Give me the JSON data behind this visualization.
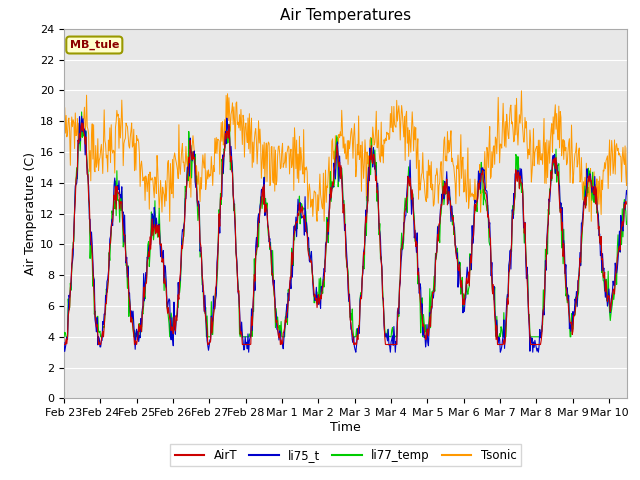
{
  "title": "Air Temperatures",
  "xlabel": "Time",
  "ylabel": "Air Temperature (C)",
  "annotation": "MB_tule",
  "ylim": [
    0,
    24
  ],
  "legend": [
    "AirT",
    "li75_t",
    "li77_temp",
    "Tsonic"
  ],
  "colors": {
    "AirT": "#cc0000",
    "li75_t": "#0000cc",
    "li77_temp": "#00cc00",
    "Tsonic": "#ff9900"
  },
  "background_color": "#e8e8e8",
  "fig_background": "#ffffff",
  "title_fontsize": 11,
  "axis_label_fontsize": 9,
  "tick_fontsize": 8,
  "num_points": 800,
  "x_tick_labels": [
    "Feb 23",
    "Feb 24",
    "Feb 25",
    "Feb 26",
    "Feb 27",
    "Feb 28",
    "Mar 1",
    "Mar 2",
    "Mar 3",
    "Mar 4",
    "Mar 5",
    "Mar 6",
    "Mar 7",
    "Mar 8",
    "Mar 9",
    "Mar 10"
  ],
  "annotation_fontsize": 8
}
